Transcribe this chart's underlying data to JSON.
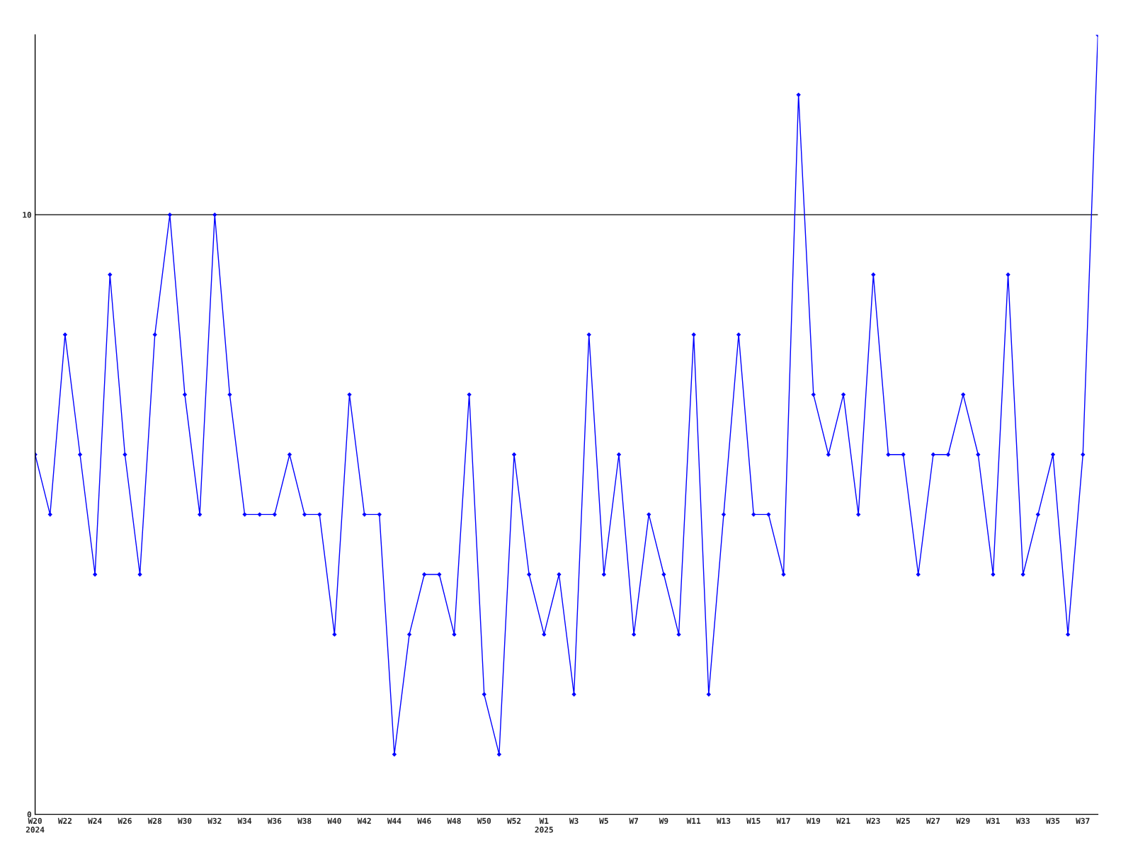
{
  "chart_data": {
    "type": "line",
    "categories": [
      "W20\n2024",
      null,
      "W22",
      null,
      "W24",
      null,
      "W26",
      null,
      "W28",
      null,
      "W30",
      null,
      "W32",
      null,
      "W34",
      null,
      "W36",
      null,
      "W38",
      null,
      "W40",
      null,
      "W42",
      null,
      "W44",
      null,
      "W46",
      null,
      "W48",
      null,
      "W50",
      null,
      "W52",
      null,
      "W1\n2025",
      null,
      "W3",
      null,
      "W5",
      null,
      "W7",
      null,
      "W9",
      null,
      "W11",
      null,
      "W13",
      null,
      "W15",
      null,
      "W17",
      null,
      "W19",
      null,
      "W21",
      null,
      "W23",
      null,
      "W25",
      null,
      "W27",
      null,
      "W29",
      null,
      "W31",
      null,
      "W33",
      null,
      "W35",
      null,
      "W37",
      null
    ],
    "series": [
      {
        "color": "#0000ff",
        "values": [
          6,
          5,
          8,
          6,
          4,
          9,
          6,
          4,
          8,
          10,
          7,
          5,
          10,
          7,
          5,
          5,
          5,
          6,
          5,
          5,
          3,
          7,
          5,
          5,
          1,
          3,
          4,
          4,
          3,
          7,
          2,
          1,
          6,
          4,
          3,
          4,
          2,
          8,
          4,
          6,
          3,
          5,
          4,
          3,
          8,
          2,
          5,
          8,
          5,
          5,
          4,
          12,
          7,
          6,
          7,
          5,
          9,
          6,
          6,
          4,
          6,
          6,
          7,
          6,
          4,
          9,
          4,
          5,
          6,
          3,
          6,
          13
        ]
      }
    ],
    "ylim": [
      0,
      13
    ],
    "yticks": [
      0,
      10
    ],
    "grid": "y",
    "marker": "diamond",
    "line_style": "solid"
  }
}
